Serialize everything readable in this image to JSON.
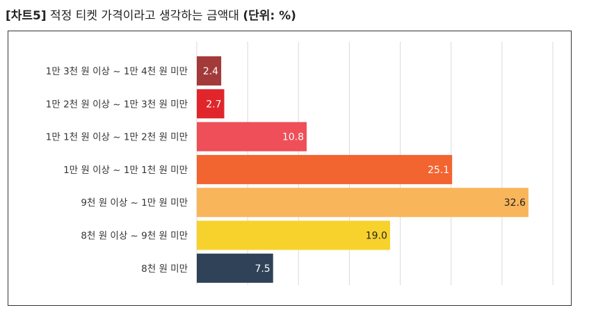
{
  "title": {
    "tag": "[차트5]",
    "text": " 적정 티켓 가격이라고 생각하는 금액대 ",
    "unit": "(단위: %)"
  },
  "chart_data": {
    "type": "bar",
    "orientation": "horizontal",
    "title": "[차트5] 적정 티켓 가격이라고 생각하는 금액대 (단위: %)",
    "xlabel": "",
    "ylabel": "",
    "xlim": [
      0,
      35
    ],
    "grid": true,
    "categories": [
      "1만 3천 원 이상 ~ 1만 4천 원 미만",
      "1만 2천 원 이상 ~ 1만 3천 원 미만",
      "1만 1천 원 이상 ~ 1만 2천 원 미만",
      "1만 원 이상 ~ 1만 1천 원 미만",
      "9천 원 이상 ~ 1만 원 미만",
      "8천 원 이상 ~ 9천 원 미만",
      "8천 원 미만"
    ],
    "values": [
      2.4,
      2.7,
      10.8,
      25.1,
      32.6,
      19.0,
      7.5
    ],
    "value_labels": [
      "2.4",
      "2.7",
      "10.8",
      "25.1",
      "32.6",
      "19.0",
      "7.5"
    ],
    "colors": [
      "#A33A3A",
      "#E0262B",
      "#EE4F58",
      "#F26430",
      "#F8B55A",
      "#F7D22D",
      "#2F4257"
    ]
  }
}
